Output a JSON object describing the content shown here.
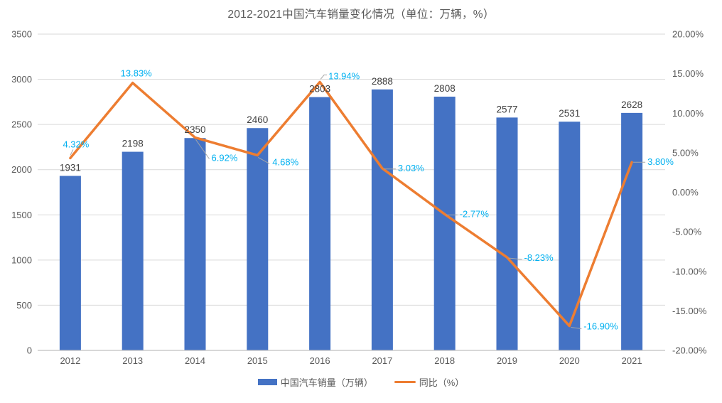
{
  "title": "2012-2021中国汽车销量变化情况（单位：万辆，%）",
  "chart_data": {
    "type": "combo-bar-line",
    "title": "2012-2021中国汽车销量变化情况（单位：万辆，%）",
    "categories": [
      "2012",
      "2013",
      "2014",
      "2015",
      "2016",
      "2017",
      "2018",
      "2019",
      "2020",
      "2021"
    ],
    "series": [
      {
        "name": "中国汽车销量（万辆）",
        "type": "bar",
        "axis": "left",
        "color": "#4472C4",
        "label_color": "#404040",
        "values": [
          1931,
          2198,
          2350,
          2460,
          2803,
          2888,
          2808,
          2577,
          2531,
          2628
        ],
        "labels": [
          "1931",
          "2198",
          "2350",
          "2460",
          "2803",
          "2888",
          "2808",
          "2577",
          "2531",
          "2628"
        ]
      },
      {
        "name": "同比（%）",
        "type": "line",
        "axis": "right",
        "color": "#ED7D31",
        "label_color": "#00B0F0",
        "values": [
          4.32,
          13.83,
          6.92,
          4.68,
          13.94,
          3.03,
          -2.77,
          -8.23,
          -16.9,
          3.8
        ],
        "labels": [
          "4.32%",
          "13.83%",
          "6.92%",
          "4.68%",
          "13.94%",
          "3.03%",
          "-2.77%",
          "-8.23%",
          "-16.90%",
          "3.80%"
        ]
      }
    ],
    "left_axis": {
      "min": 0,
      "max": 3500,
      "step": 500,
      "tick_labels": [
        "0",
        "500",
        "1000",
        "1500",
        "2000",
        "2500",
        "3000",
        "3500"
      ]
    },
    "right_axis": {
      "min": -20,
      "max": 20,
      "step": 5,
      "tick_labels": [
        "-20.00%",
        "-15.00%",
        "-10.00%",
        "-5.00%",
        "0.00%",
        "5.00%",
        "10.00%",
        "15.00%",
        "20.00%"
      ]
    },
    "grid": true,
    "legend_position": "bottom",
    "colors": {
      "gridline": "#D9D9D9",
      "axis_line": "#C0C0C0",
      "axis_text": "#595959",
      "leader_line": "#A6A6A6",
      "title_text": "#595959"
    }
  }
}
